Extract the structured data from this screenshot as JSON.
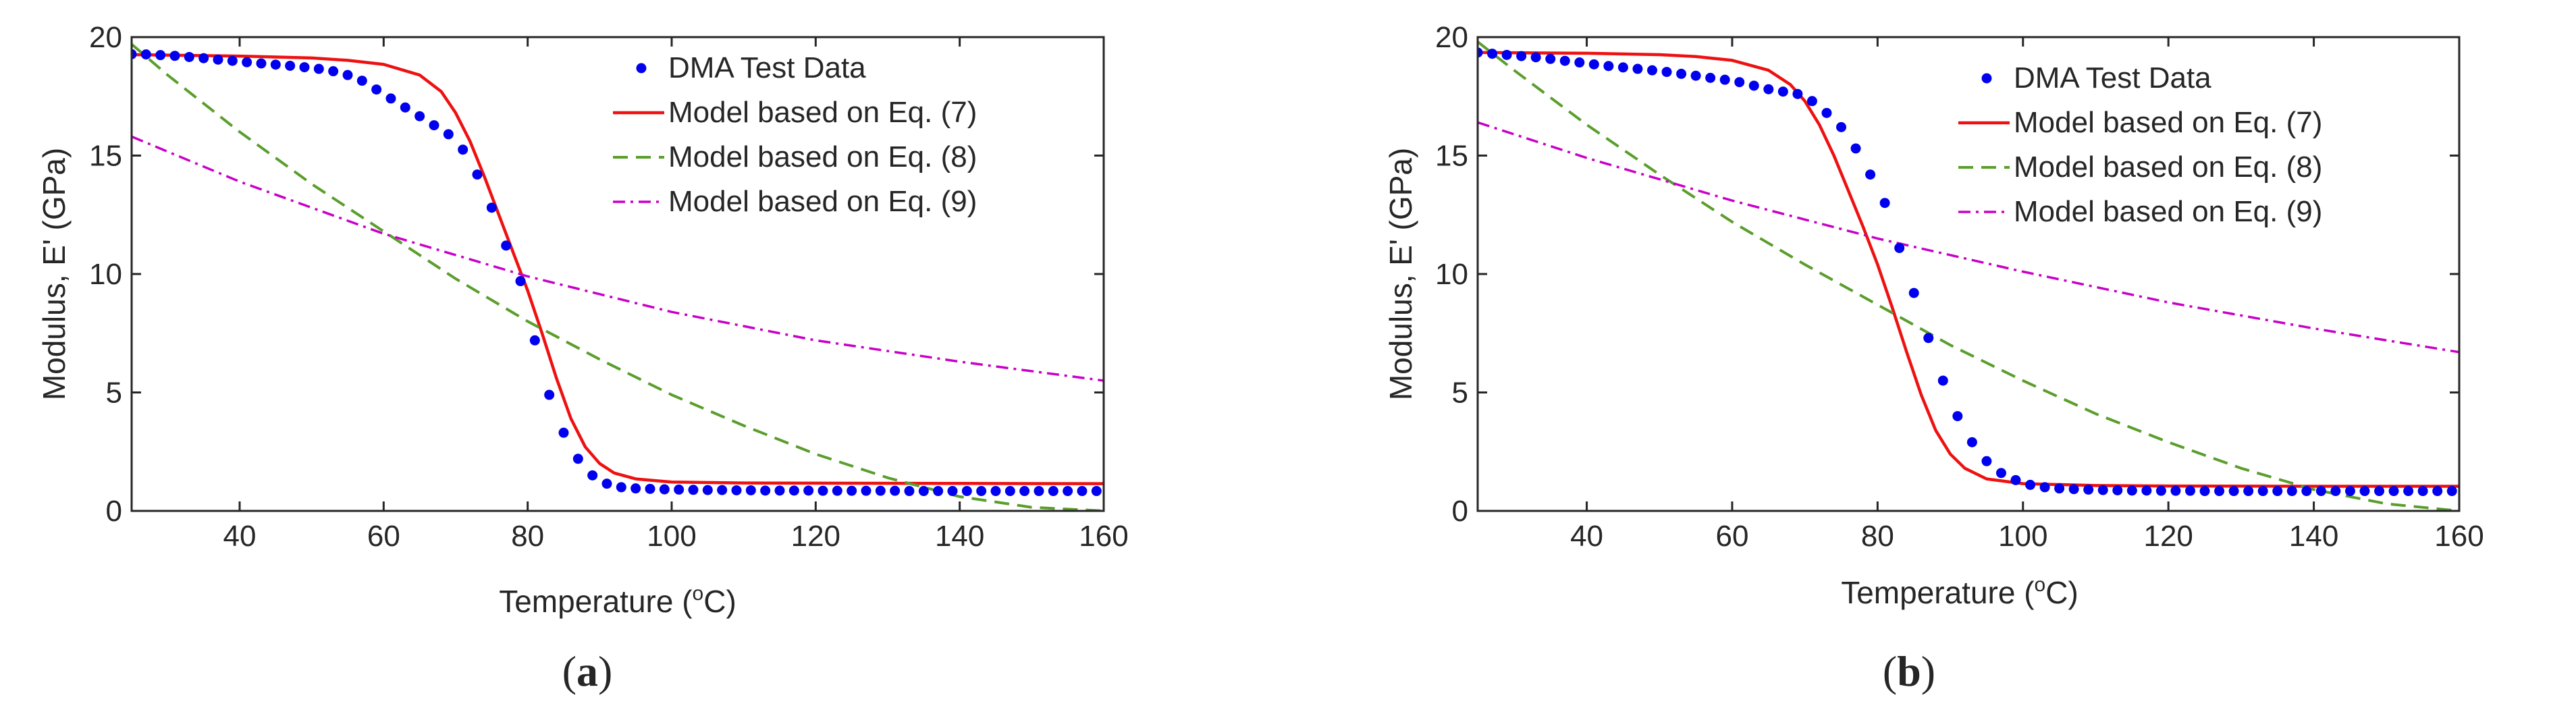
{
  "colors": {
    "data": "#0000ee",
    "eq7": "#ee1111",
    "eq8": "#5a9e2c",
    "eq9": "#c800c8",
    "axis": "#262626"
  },
  "chart_data": [
    {
      "type": "line",
      "panel": "(a)",
      "caption_open": "(",
      "caption_letter": "a",
      "caption_close": ")",
      "xlabel_main": "Temperature (",
      "xlabel_sup": "o",
      "xlabel_tail": "C)",
      "ylabel": "Modulus, E' (GPa)",
      "xlim": [
        25,
        160
      ],
      "ylim": [
        0,
        20
      ],
      "xticks": [
        40,
        60,
        80,
        100,
        120,
        140,
        160
      ],
      "yticks": [
        0,
        5,
        10,
        15,
        20
      ],
      "legend_position": "top-right",
      "series": [
        {
          "key": "data",
          "name": "DMA Test Data",
          "style": "dots",
          "x": [
            25,
            27,
            29,
            31,
            33,
            35,
            37,
            39,
            41,
            43,
            45,
            47,
            49,
            51,
            53,
            55,
            57,
            59,
            61,
            63,
            65,
            67,
            69,
            71,
            73,
            75,
            77,
            79,
            81,
            83,
            85,
            87,
            89,
            91,
            93,
            95,
            97,
            99,
            101,
            103,
            105,
            107,
            109,
            111,
            113,
            115,
            117,
            119,
            121,
            123,
            125,
            127,
            129,
            131,
            133,
            135,
            137,
            139,
            141,
            143,
            145,
            147,
            149,
            151,
            153,
            155,
            157,
            159
          ],
          "y": [
            19.28,
            19.27,
            19.24,
            19.21,
            19.16,
            19.11,
            19.05,
            19.0,
            18.94,
            18.89,
            18.84,
            18.79,
            18.73,
            18.66,
            18.56,
            18.4,
            18.16,
            17.79,
            17.41,
            17.03,
            16.66,
            16.28,
            15.9,
            15.25,
            14.2,
            12.8,
            11.2,
            9.7,
            7.2,
            4.9,
            3.3,
            2.2,
            1.5,
            1.15,
            1.0,
            0.95,
            0.93,
            0.91,
            0.9,
            0.89,
            0.88,
            0.88,
            0.87,
            0.87,
            0.86,
            0.86,
            0.86,
            0.86,
            0.85,
            0.85,
            0.85,
            0.85,
            0.85,
            0.85,
            0.84,
            0.84,
            0.84,
            0.84,
            0.84,
            0.84,
            0.84,
            0.84,
            0.84,
            0.84,
            0.84,
            0.84,
            0.84,
            0.84
          ]
        },
        {
          "key": "eq7",
          "name": "Model based on Eq. (7)",
          "style": "solid",
          "x": [
            25,
            40,
            50,
            55,
            60,
            65,
            68,
            70,
            72,
            74,
            76,
            78,
            80,
            82,
            84,
            86,
            88,
            90,
            92,
            95,
            100,
            110,
            120,
            140,
            160
          ],
          "y": [
            19.26,
            19.2,
            19.12,
            19.02,
            18.85,
            18.4,
            17.7,
            16.8,
            15.6,
            14.1,
            12.5,
            10.9,
            9.3,
            7.5,
            5.6,
            3.9,
            2.7,
            2.0,
            1.6,
            1.35,
            1.22,
            1.18,
            1.17,
            1.16,
            1.15
          ]
        },
        {
          "key": "eq8",
          "name": "Model based on Eq. (8)",
          "style": "dashed",
          "x": [
            25,
            30,
            40,
            50,
            60,
            70,
            80,
            90,
            100,
            110,
            120,
            130,
            140,
            150,
            160
          ],
          "y": [
            19.7,
            18.4,
            16.0,
            13.8,
            11.8,
            9.8,
            8.0,
            6.4,
            4.9,
            3.6,
            2.4,
            1.4,
            0.6,
            0.15,
            0.0
          ]
        },
        {
          "key": "eq9",
          "name": "Model based on Eq. (9)",
          "style": "dashdot",
          "x": [
            25,
            40,
            60,
            80,
            100,
            120,
            140,
            160
          ],
          "y": [
            15.8,
            13.9,
            11.7,
            9.9,
            8.4,
            7.2,
            6.3,
            5.5
          ]
        }
      ]
    },
    {
      "type": "line",
      "panel": "(b)",
      "caption_open": "(",
      "caption_letter": "b",
      "caption_close": ")",
      "xlabel_main": "Temperature (",
      "xlabel_sup": "o",
      "xlabel_tail": "C)",
      "ylabel": "Modulus, E' (GPa)",
      "xlim": [
        25,
        160
      ],
      "ylim": [
        0,
        20
      ],
      "xticks": [
        40,
        60,
        80,
        100,
        120,
        140,
        160
      ],
      "yticks": [
        0,
        5,
        10,
        15,
        20
      ],
      "legend_position": "top-right",
      "series": [
        {
          "key": "data",
          "name": "DMA Test Data",
          "style": "dots",
          "x": [
            25,
            27,
            29,
            31,
            33,
            35,
            37,
            39,
            41,
            43,
            45,
            47,
            49,
            51,
            53,
            55,
            57,
            59,
            61,
            63,
            65,
            67,
            69,
            71,
            73,
            75,
            77,
            79,
            81,
            83,
            85,
            87,
            89,
            91,
            93,
            95,
            97,
            99,
            101,
            103,
            105,
            107,
            109,
            111,
            113,
            115,
            117,
            119,
            121,
            123,
            125,
            127,
            129,
            131,
            133,
            135,
            137,
            139,
            141,
            143,
            145,
            147,
            149,
            151,
            153,
            155,
            157,
            159
          ],
          "y": [
            19.35,
            19.3,
            19.25,
            19.2,
            19.15,
            19.08,
            19.0,
            18.93,
            18.85,
            18.78,
            18.72,
            18.66,
            18.6,
            18.53,
            18.45,
            18.37,
            18.28,
            18.2,
            18.1,
            17.95,
            17.8,
            17.7,
            17.6,
            17.3,
            16.8,
            16.2,
            15.3,
            14.2,
            13.0,
            11.1,
            9.2,
            7.3,
            5.5,
            4.0,
            2.9,
            2.1,
            1.6,
            1.3,
            1.1,
            1.0,
            0.95,
            0.92,
            0.9,
            0.88,
            0.87,
            0.86,
            0.86,
            0.85,
            0.85,
            0.85,
            0.84,
            0.84,
            0.84,
            0.84,
            0.84,
            0.84,
            0.84,
            0.84,
            0.84,
            0.84,
            0.84,
            0.84,
            0.84,
            0.84,
            0.84,
            0.84,
            0.84,
            0.84
          ]
        },
        {
          "key": "eq7",
          "name": "Model based on Eq. (7)",
          "style": "solid",
          "x": [
            25,
            40,
            50,
            55,
            60,
            65,
            68,
            70,
            72,
            74,
            76,
            78,
            80,
            82,
            84,
            86,
            88,
            90,
            92,
            95,
            100,
            110,
            120,
            140,
            160
          ],
          "y": [
            19.35,
            19.32,
            19.26,
            19.18,
            19.02,
            18.6,
            18.0,
            17.3,
            16.3,
            15.0,
            13.5,
            12.0,
            10.4,
            8.6,
            6.7,
            4.9,
            3.4,
            2.4,
            1.8,
            1.35,
            1.15,
            1.07,
            1.05,
            1.04,
            1.04
          ]
        },
        {
          "key": "eq8",
          "name": "Model based on Eq. (8)",
          "style": "dashed",
          "x": [
            25,
            30,
            40,
            50,
            60,
            70,
            80,
            90,
            100,
            110,
            120,
            130,
            140,
            150,
            160
          ],
          "y": [
            19.8,
            18.6,
            16.3,
            14.2,
            12.2,
            10.4,
            8.7,
            7.0,
            5.5,
            4.1,
            2.9,
            1.8,
            0.9,
            0.3,
            0.0
          ]
        },
        {
          "key": "eq9",
          "name": "Model based on Eq. (9)",
          "style": "dashdot",
          "x": [
            25,
            40,
            60,
            80,
            100,
            120,
            140,
            160
          ],
          "y": [
            16.4,
            14.9,
            13.1,
            11.5,
            10.1,
            8.8,
            7.7,
            6.7
          ]
        }
      ]
    }
  ]
}
